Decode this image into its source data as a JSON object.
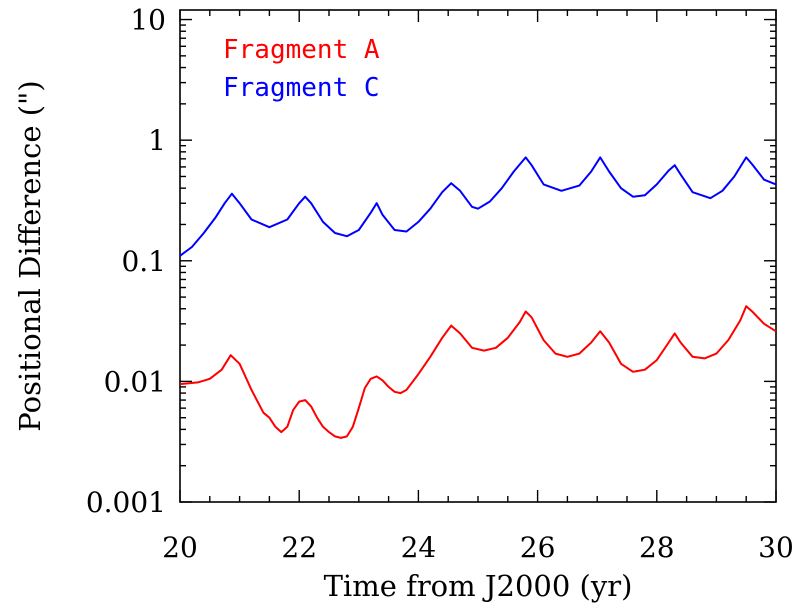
{
  "chart_data": {
    "type": "line",
    "xlabel": "Time from J2000 (yr)",
    "ylabel": "Positional Difference (\")",
    "xlim": [
      20,
      30
    ],
    "ylim": [
      0.001,
      12
    ],
    "yscale": "log",
    "x_ticks": [
      20,
      22,
      24,
      26,
      28,
      30
    ],
    "x_tick_labels": [
      "20",
      "22",
      "24",
      "26",
      "28",
      "30"
    ],
    "y_ticks": [
      0.001,
      0.01,
      0.1,
      1,
      10
    ],
    "y_tick_labels": [
      "0.001",
      "0.01",
      "0.1",
      "1",
      "10"
    ],
    "grid": false,
    "legend_position": "top-left",
    "series": [
      {
        "name": "Fragment A",
        "color": "#ff0000",
        "x": [
          20.0,
          20.3,
          20.5,
          20.7,
          20.85,
          21.0,
          21.2,
          21.4,
          21.5,
          21.6,
          21.7,
          21.8,
          21.9,
          22.0,
          22.1,
          22.2,
          22.3,
          22.4,
          22.5,
          22.6,
          22.7,
          22.8,
          22.9,
          23.0,
          23.1,
          23.2,
          23.3,
          23.4,
          23.5,
          23.6,
          23.7,
          23.8,
          24.0,
          24.2,
          24.4,
          24.55,
          24.7,
          24.9,
          25.1,
          25.3,
          25.5,
          25.7,
          25.8,
          25.9,
          26.1,
          26.3,
          26.5,
          26.7,
          26.9,
          27.05,
          27.2,
          27.4,
          27.6,
          27.8,
          28.0,
          28.2,
          28.3,
          28.4,
          28.6,
          28.8,
          29.0,
          29.2,
          29.4,
          29.5,
          29.6,
          29.8,
          30.0
        ],
        "y": [
          0.0095,
          0.0098,
          0.0105,
          0.0125,
          0.0165,
          0.014,
          0.0085,
          0.0055,
          0.005,
          0.0042,
          0.0038,
          0.0042,
          0.0058,
          0.0068,
          0.007,
          0.0062,
          0.005,
          0.0042,
          0.0038,
          0.0035,
          0.0034,
          0.0035,
          0.0042,
          0.006,
          0.0088,
          0.0105,
          0.011,
          0.0102,
          0.009,
          0.0082,
          0.008,
          0.0085,
          0.0115,
          0.016,
          0.023,
          0.029,
          0.025,
          0.019,
          0.018,
          0.019,
          0.023,
          0.031,
          0.038,
          0.034,
          0.022,
          0.017,
          0.016,
          0.017,
          0.021,
          0.026,
          0.021,
          0.014,
          0.012,
          0.0125,
          0.015,
          0.021,
          0.025,
          0.021,
          0.016,
          0.0155,
          0.017,
          0.022,
          0.032,
          0.042,
          0.038,
          0.03,
          0.026
        ]
      },
      {
        "name": "Fragment C",
        "color": "#0000ff",
        "x": [
          20.0,
          20.2,
          20.4,
          20.6,
          20.75,
          20.87,
          21.0,
          21.2,
          21.5,
          21.8,
          22.0,
          22.1,
          22.2,
          22.4,
          22.6,
          22.8,
          23.0,
          23.2,
          23.3,
          23.4,
          23.6,
          23.8,
          24.0,
          24.2,
          24.4,
          24.55,
          24.7,
          24.9,
          25.0,
          25.2,
          25.4,
          25.6,
          25.8,
          25.9,
          26.1,
          26.4,
          26.7,
          26.9,
          27.05,
          27.2,
          27.4,
          27.6,
          27.8,
          28.0,
          28.2,
          28.3,
          28.4,
          28.6,
          28.9,
          29.1,
          29.3,
          29.5,
          29.6,
          29.8,
          30.0
        ],
        "y": [
          0.11,
          0.13,
          0.17,
          0.23,
          0.3,
          0.36,
          0.3,
          0.22,
          0.19,
          0.22,
          0.3,
          0.34,
          0.3,
          0.21,
          0.17,
          0.16,
          0.18,
          0.25,
          0.3,
          0.24,
          0.18,
          0.175,
          0.21,
          0.27,
          0.37,
          0.44,
          0.38,
          0.28,
          0.27,
          0.31,
          0.4,
          0.55,
          0.72,
          0.62,
          0.43,
          0.38,
          0.42,
          0.55,
          0.72,
          0.55,
          0.4,
          0.34,
          0.35,
          0.43,
          0.56,
          0.62,
          0.52,
          0.37,
          0.33,
          0.38,
          0.5,
          0.72,
          0.63,
          0.47,
          0.43
        ]
      }
    ]
  }
}
